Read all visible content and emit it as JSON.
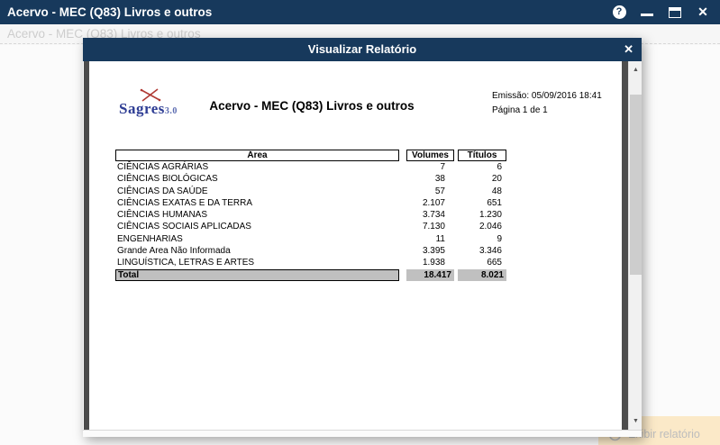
{
  "colors": {
    "titlebar": "#17395c",
    "total_row_bg": "#c0c0c0",
    "exibir_button_bg": "#fbe9c8",
    "logo_blue": "#2e3d94",
    "logo_red": "#b03a34"
  },
  "window": {
    "title": "Acervo - MEC (Q83) Livros e outros",
    "icons": {
      "help": "?",
      "close": "✕"
    }
  },
  "background": {
    "ghost_title": "Acervo - MEC (Q83) Livros e outros",
    "exibir_button": {
      "label": "Exibir relatório"
    }
  },
  "modal": {
    "title": "Visualizar Relatório",
    "close": "✕",
    "scrollbar": {
      "up": "▲",
      "down": "▼"
    }
  },
  "report": {
    "logo": {
      "name": "Sagres",
      "version": "3.0"
    },
    "title": "Acervo - MEC (Q83) Livros e outros",
    "emission": "Emissão: 05/09/2016 18:41",
    "page_info": "Página 1 de 1",
    "table": {
      "headers": [
        "Área",
        "Volumes",
        "Títulos"
      ],
      "rows": [
        [
          "CIÊNCIAS AGRÁRIAS",
          "7",
          "6"
        ],
        [
          "CIÊNCIAS BIOLÓGICAS",
          "38",
          "20"
        ],
        [
          "CIÊNCIAS DA SAÚDE",
          "57",
          "48"
        ],
        [
          "CIÊNCIAS EXATAS E DA TERRA",
          "2.107",
          "651"
        ],
        [
          "CIÊNCIAS HUMANAS",
          "3.734",
          "1.230"
        ],
        [
          "CIÊNCIAS SOCIAIS APLICADAS",
          "7.130",
          "2.046"
        ],
        [
          "ENGENHARIAS",
          "11",
          "9"
        ],
        [
          "Grande Area Não Informada",
          "3.395",
          "3.346"
        ],
        [
          "LINGUÍSTICA, LETRAS E ARTES",
          "1.938",
          "665"
        ]
      ],
      "total": [
        "Total",
        "18.417",
        "8.021"
      ]
    }
  }
}
